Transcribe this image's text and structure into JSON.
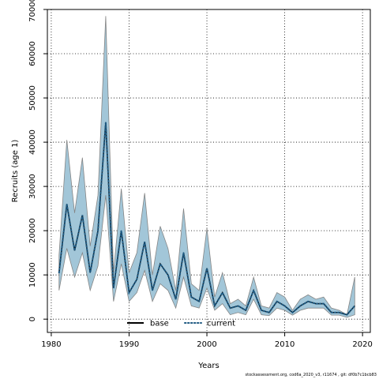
{
  "chart_data": {
    "type": "area",
    "title": "",
    "xlabel": "Years",
    "ylabel": "Recruits (age 1)",
    "xlim": [
      1979.5,
      2021.0
    ],
    "ylim": [
      -3000,
      70000
    ],
    "xticks": [
      1980,
      1990,
      2000,
      2010,
      2020
    ],
    "yticks": [
      0,
      10000,
      20000,
      30000,
      40000,
      50000,
      60000,
      70000
    ],
    "grid": true,
    "legend_placement": "bottom-center",
    "x": [
      1981,
      1982,
      1983,
      1984,
      1985,
      1986,
      1987,
      1988,
      1989,
      1990,
      1991,
      1992,
      1993,
      1994,
      1995,
      1996,
      1997,
      1998,
      1999,
      2000,
      2001,
      2002,
      2003,
      2004,
      2005,
      2006,
      2007,
      2008,
      2009,
      2010,
      2011,
      2012,
      2013,
      2014,
      2015,
      2016,
      2017,
      2018,
      2019
    ],
    "series": [
      {
        "name": "base",
        "style": "solid",
        "color": "#000000",
        "values": [
          10500,
          26000,
          15500,
          23500,
          10500,
          20000,
          44500,
          7000,
          20000,
          6000,
          9000,
          17500,
          6500,
          12500,
          10000,
          4500,
          15000,
          5000,
          4000,
          11500,
          3000,
          6000,
          2500,
          3000,
          2000,
          6500,
          2000,
          1500,
          4000,
          3000,
          1500,
          3000,
          4000,
          3500,
          3500,
          1500,
          1500,
          1000,
          3000
        ]
      },
      {
        "name": "current",
        "style": "dotted",
        "color": "#1f5a82",
        "values": [
          10500,
          26000,
          15500,
          23500,
          10500,
          20000,
          44500,
          7000,
          20000,
          6000,
          9000,
          17500,
          6500,
          12500,
          10000,
          4500,
          15000,
          5000,
          4000,
          11500,
          3000,
          6000,
          2500,
          3000,
          2000,
          6500,
          2000,
          1500,
          4000,
          3000,
          1500,
          3000,
          4000,
          3500,
          3500,
          1500,
          1500,
          1000,
          3000
        ]
      }
    ],
    "ci_upper": [
      14500,
      40500,
      24000,
      36500,
      16500,
      28000,
      68500,
      10500,
      29500,
      10500,
      15000,
      28500,
      10000,
      21000,
      16000,
      6500,
      25000,
      8000,
      6500,
      20500,
      5000,
      10500,
      3500,
      4500,
      3000,
      9500,
      3000,
      2500,
      6000,
      5000,
      2000,
      4500,
      5500,
      4500,
      5000,
      2500,
      2000,
      1000,
      9500
    ],
    "ci_lower": [
      6500,
      16000,
      9500,
      15000,
      6500,
      12000,
      28000,
      4000,
      12500,
      4000,
      6000,
      11000,
      4000,
      8000,
      6500,
      2500,
      9500,
      3000,
      2500,
      7000,
      2000,
      3500,
      1000,
      1500,
      1000,
      4500,
      1000,
      800,
      2500,
      2000,
      900,
      2000,
      2500,
      2500,
      2500,
      900,
      900,
      400,
      1000
    ],
    "band_color": "#a2c6d8",
    "band_edge_color": "#858585",
    "footer": "stockassessment.org, cod6a_2020_v3, r11674 , git: df0b7c1bcb83"
  }
}
